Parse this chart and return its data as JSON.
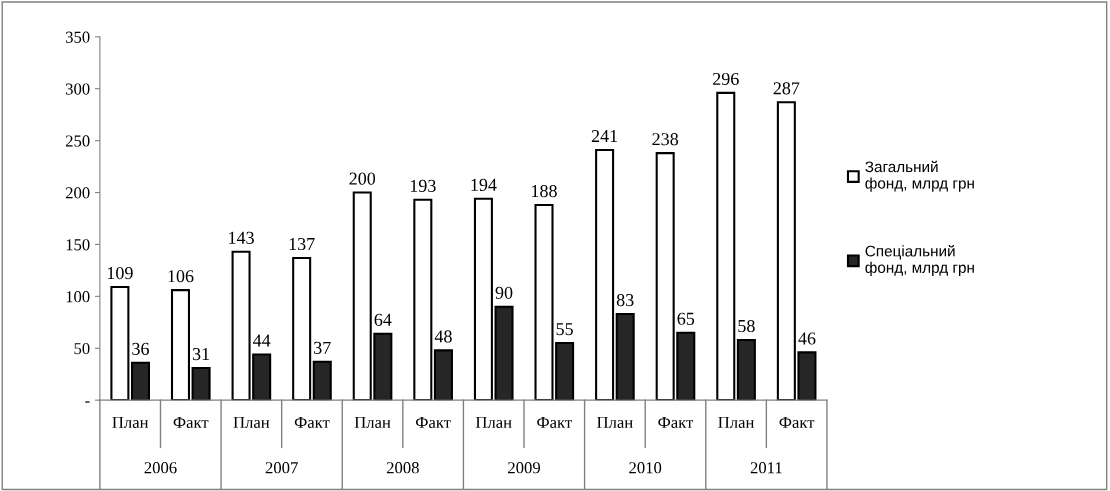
{
  "chart_data": {
    "type": "bar",
    "categories": [
      "План",
      "Факт",
      "План",
      "Факт",
      "План",
      "Факт",
      "План",
      "Факт",
      "План",
      "Факт",
      "План",
      "Факт"
    ],
    "annotations": [
      "2006",
      "2007",
      "2008",
      "2009",
      "2010",
      "2011"
    ],
    "series": [
      {
        "name": "Загальний фонд, млрд грн",
        "color": "#ffffff",
        "values": [
          109,
          106,
          143,
          137,
          200,
          193,
          194,
          188,
          241,
          238,
          296,
          287
        ]
      },
      {
        "name": "Спеціальний фонд, млрд грн",
        "color": "#262626",
        "values": [
          36,
          31,
          44,
          37,
          64,
          48,
          90,
          55,
          83,
          65,
          58,
          46
        ]
      }
    ],
    "ylim": [
      0,
      350
    ],
    "yticks": [
      {
        "value": 0,
        "label": "-"
      },
      50,
      100,
      150,
      200,
      250,
      300,
      350
    ],
    "data_labels": true,
    "grid": false,
    "legend": "right"
  }
}
